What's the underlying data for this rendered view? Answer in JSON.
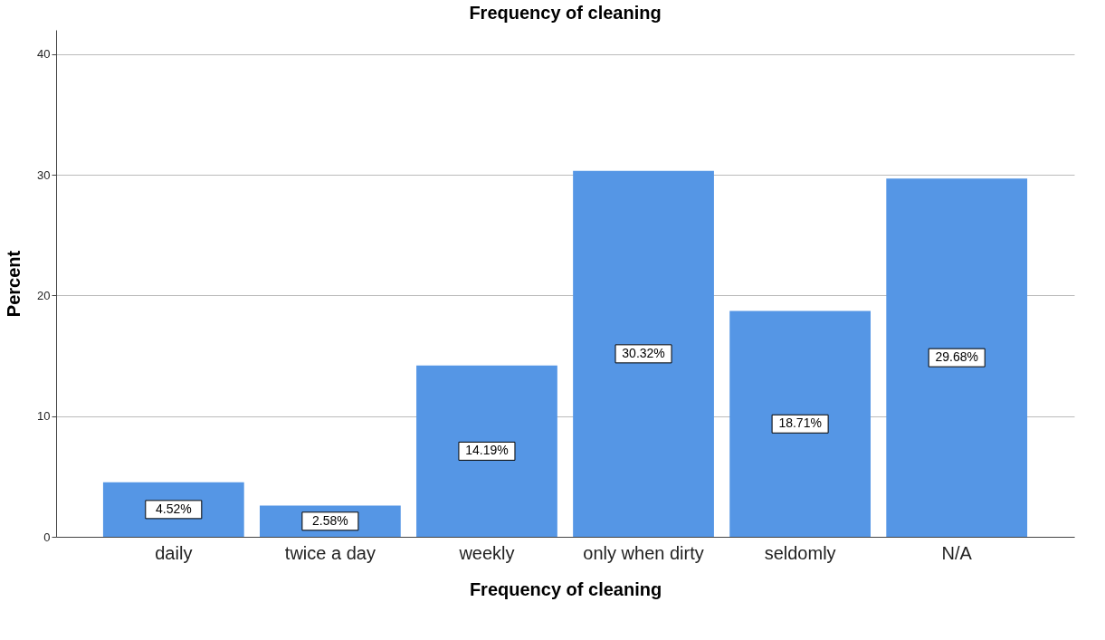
{
  "chart_data": {
    "type": "bar",
    "title": "Frequency of cleaning",
    "xlabel": "Frequency of cleaning",
    "ylabel": "Percent",
    "categories": [
      "daily",
      "twice a day",
      "weekly",
      "only when dirty",
      "seldomly",
      "N/A"
    ],
    "values": [
      4.52,
      2.58,
      14.19,
      30.32,
      18.71,
      29.68
    ],
    "value_labels": [
      "4.52%",
      "2.58%",
      "14.19%",
      "30.32%",
      "18.71%",
      "29.68%"
    ],
    "color": "#5596e5",
    "ylim": [
      0,
      42
    ],
    "yticks": [
      0,
      10,
      20,
      30,
      40
    ],
    "grid": "y"
  }
}
